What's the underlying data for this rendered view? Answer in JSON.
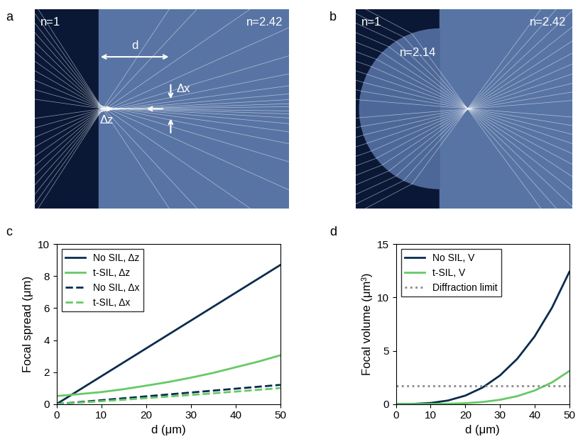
{
  "diagrams": [
    {
      "panel_label": "a",
      "media": [
        {
          "label": "n=1"
        },
        {
          "label": "n=2.42"
        }
      ],
      "annotations": {
        "distance": "d",
        "axial": "Δz",
        "lateral": "Δx"
      }
    },
    {
      "panel_label": "b",
      "media": [
        {
          "label": "n=1"
        },
        {
          "label": "n=2.42"
        },
        {
          "label": "n=2.14"
        }
      ]
    }
  ],
  "chart_data": [
    {
      "panel_label": "c",
      "type": "line",
      "xlabel": "d (μm)",
      "ylabel": "Focal spread (μm)",
      "x": [
        0,
        5,
        10,
        15,
        20,
        25,
        30,
        35,
        40,
        45,
        50
      ],
      "xlim": [
        0,
        50
      ],
      "xticks": [
        0,
        10,
        20,
        30,
        40,
        50
      ],
      "ylim": [
        0,
        10
      ],
      "yticks": [
        0,
        2,
        4,
        6,
        8,
        10
      ],
      "legend": "upper left",
      "series": [
        {
          "name": "No SIL, Δz",
          "color": "#0b2c4d",
          "line_style": "solid",
          "values": [
            0,
            0.87,
            1.74,
            2.61,
            3.48,
            4.35,
            5.22,
            6.09,
            6.96,
            7.83,
            8.7
          ]
        },
        {
          "name": "t-SIL, Δz",
          "color": "#66c966",
          "line_style": "solid",
          "values": [
            0.5,
            0.62,
            0.75,
            0.93,
            1.15,
            1.38,
            1.65,
            1.95,
            2.3,
            2.65,
            3.05
          ]
        },
        {
          "name": "No SIL, Δx",
          "color": "#0b2c4d",
          "line_style": "dashed",
          "values": [
            0,
            0.12,
            0.24,
            0.36,
            0.48,
            0.6,
            0.72,
            0.84,
            0.96,
            1.08,
            1.2
          ]
        },
        {
          "name": "t-SIL, Δx",
          "color": "#66c966",
          "line_style": "dashed",
          "values": [
            0,
            0.09,
            0.18,
            0.27,
            0.37,
            0.47,
            0.57,
            0.67,
            0.78,
            0.89,
            1.0
          ]
        }
      ]
    },
    {
      "panel_label": "d",
      "type": "line",
      "xlabel": "d (μm)",
      "ylabel": "Focal volume (μm³)",
      "x": [
        0,
        5,
        10,
        15,
        20,
        25,
        30,
        35,
        40,
        45,
        50
      ],
      "xlim": [
        0,
        50
      ],
      "xticks": [
        0,
        10,
        20,
        30,
        40,
        50
      ],
      "ylim": [
        0,
        15
      ],
      "yticks": [
        0,
        5,
        10,
        15
      ],
      "legend": "upper left",
      "series": [
        {
          "name": "No SIL, V",
          "color": "#0b2c4d",
          "line_style": "solid",
          "values": [
            0,
            0.012,
            0.1,
            0.33,
            0.79,
            1.55,
            2.68,
            4.25,
            6.35,
            9.04,
            12.4
          ]
        },
        {
          "name": "t-SIL, V",
          "color": "#66c966",
          "line_style": "solid",
          "values": [
            0,
            0.0002,
            0.005,
            0.025,
            0.08,
            0.19,
            0.4,
            0.74,
            1.27,
            2.03,
            3.1
          ]
        },
        {
          "name": "Diffraction limit",
          "color": "#888888",
          "line_style": "dotted",
          "values": [
            1.7,
            1.7,
            1.7,
            1.7,
            1.7,
            1.7,
            1.7,
            1.7,
            1.7,
            1.7,
            1.7
          ]
        }
      ]
    }
  ]
}
